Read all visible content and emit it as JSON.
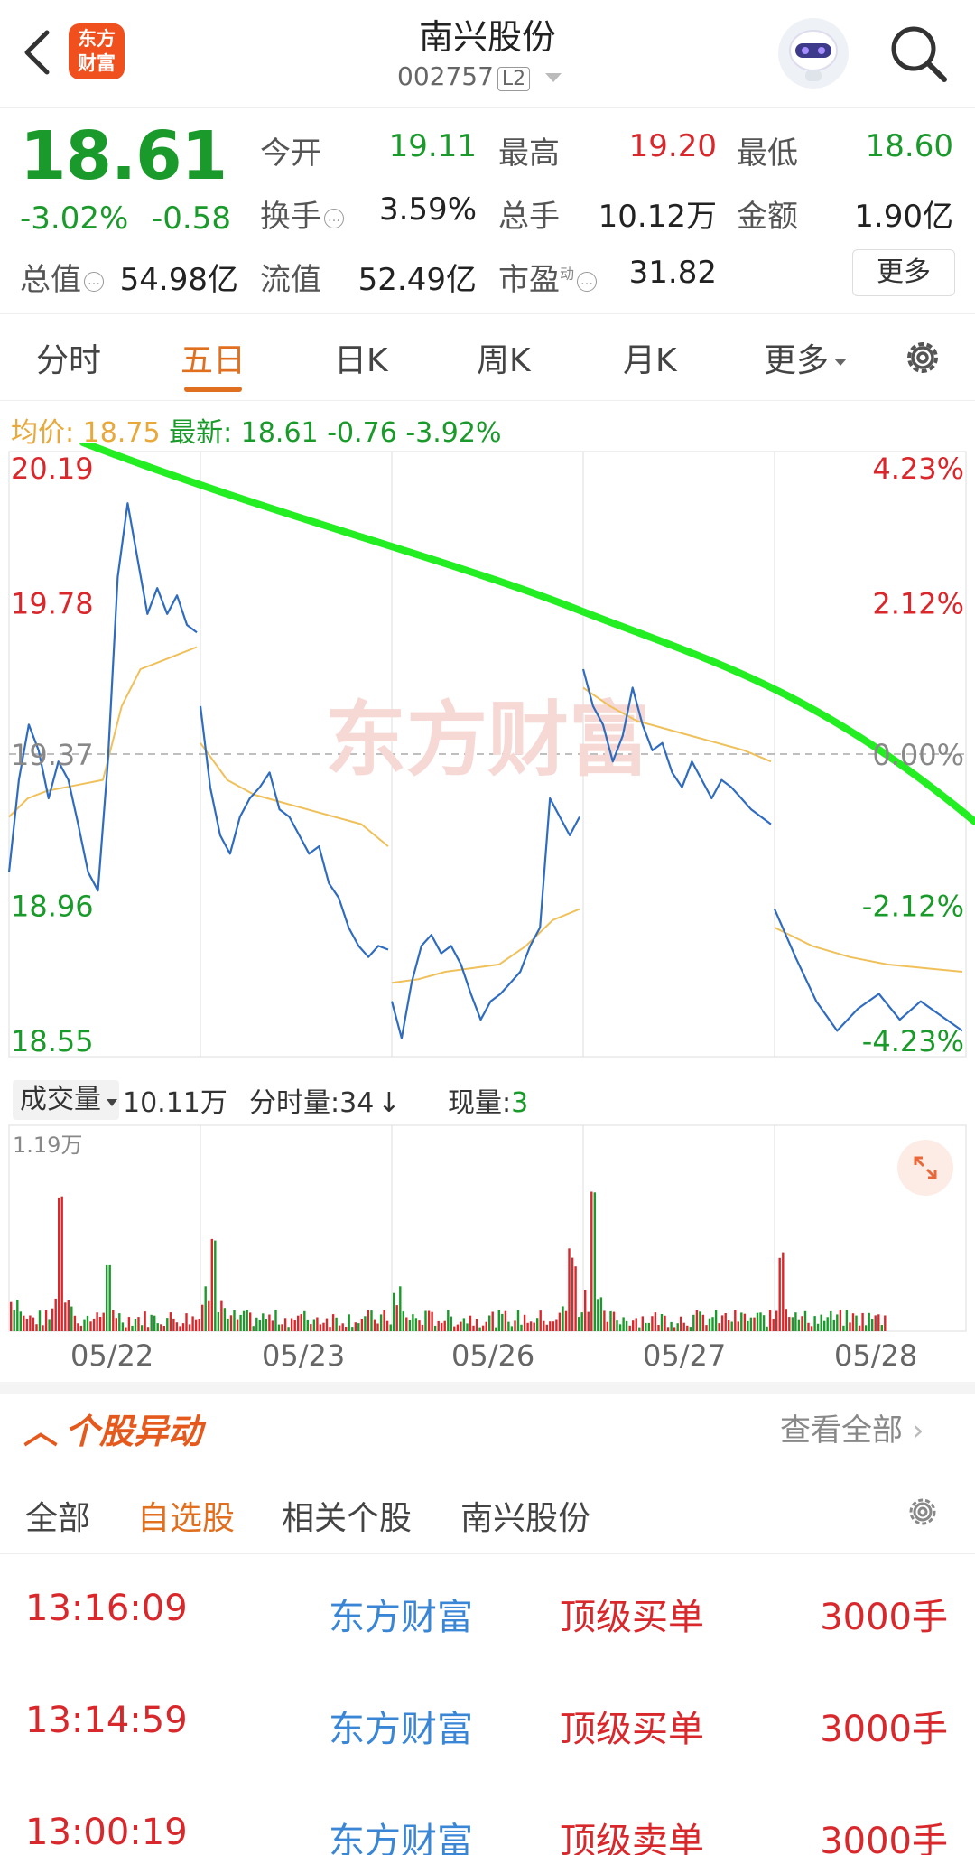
{
  "header": {
    "logo_text": "东方财富",
    "title": "南兴股份",
    "code": "002757",
    "level_badge": "L2"
  },
  "quote": {
    "price": "18.61",
    "change_pct": "-3.02%",
    "change_abs": "-0.58",
    "fields": [
      {
        "label": "今开",
        "value": "19.11",
        "color": "green"
      },
      {
        "label": "最高",
        "value": "19.20",
        "color": "red"
      },
      {
        "label": "最低",
        "value": "18.60",
        "color": "green"
      },
      {
        "label": "换手",
        "value": "3.59%",
        "color": "dark"
      },
      {
        "label": "总手",
        "value": "10.12万",
        "color": "dark"
      },
      {
        "label": "金额",
        "value": "1.90亿",
        "color": "dark"
      },
      {
        "label": "总值",
        "value": "54.98亿",
        "color": "dark"
      },
      {
        "label": "流值",
        "value": "52.49亿",
        "color": "dark"
      },
      {
        "label": "市盈",
        "value": "31.82",
        "color": "dark"
      }
    ],
    "pe_superscript": "动",
    "more_label": "更多"
  },
  "tabs": [
    "分时",
    "五日",
    "日K",
    "周K",
    "月K",
    "更多"
  ],
  "active_tab": "五日",
  "summary": {
    "avg_label": "均价:",
    "avg_value": "18.75",
    "latest_label": "最新:",
    "latest_value": "18.61",
    "latest_change": "-0.76",
    "latest_pct": "-3.92%"
  },
  "chart_data": {
    "type": "line",
    "y_left_ticks": [
      "20.19",
      "19.78",
      "19.37",
      "18.96",
      "18.55"
    ],
    "y_right_ticks": [
      "4.23%",
      "2.12%",
      "0.00%",
      "-2.12%",
      "-4.23%"
    ],
    "ylim": [
      18.55,
      20.19
    ],
    "reference_price": 19.37,
    "x_days": [
      "05/22",
      "05/23",
      "05/26",
      "05/27",
      "05/28"
    ],
    "price_series": [
      [
        19.05,
        19.3,
        19.45,
        19.38,
        19.25,
        19.35,
        19.3,
        19.18,
        19.05,
        19.0,
        19.35,
        19.85,
        20.05,
        19.9,
        19.75,
        19.82,
        19.75,
        19.8,
        19.72,
        19.7
      ],
      [
        19.5,
        19.28,
        19.15,
        19.1,
        19.2,
        19.25,
        19.28,
        19.32,
        19.22,
        19.2,
        19.15,
        19.1,
        19.12,
        19.02,
        18.98,
        18.9,
        18.85,
        18.82,
        18.85,
        18.84
      ],
      [
        18.7,
        18.6,
        18.75,
        18.85,
        18.88,
        18.83,
        18.85,
        18.8,
        18.72,
        18.65,
        18.7,
        18.72,
        18.75,
        18.78,
        18.85,
        18.9,
        19.25,
        19.2,
        19.15,
        19.2
      ],
      [
        19.6,
        19.5,
        19.45,
        19.35,
        19.42,
        19.55,
        19.45,
        19.38,
        19.4,
        19.32,
        19.28,
        19.35,
        19.3,
        19.25,
        19.3,
        19.28,
        19.25,
        19.22,
        19.2,
        19.18
      ],
      [
        18.95,
        18.82,
        18.7,
        18.62,
        18.68,
        18.72,
        18.65,
        18.7,
        18.66,
        18.62
      ]
    ],
    "avg_series": [
      [
        19.2,
        19.25,
        19.27,
        19.28,
        19.29,
        19.3,
        19.5,
        19.6,
        19.62,
        19.64,
        19.66
      ],
      [
        19.4,
        19.3,
        19.26,
        19.24,
        19.22,
        19.2,
        19.18,
        19.12
      ],
      [
        18.75,
        18.76,
        18.78,
        18.79,
        18.8,
        18.85,
        18.92,
        18.95
      ],
      [
        19.55,
        19.5,
        19.46,
        19.44,
        19.42,
        19.4,
        19.38,
        19.35
      ],
      [
        18.9,
        18.85,
        18.82,
        18.8,
        18.79,
        18.78
      ]
    ],
    "trend_line": {
      "color": "#22ee22"
    },
    "volume": {
      "max_label": "1.19万",
      "spikes": [
        [
          0,
          0.26,
          0.85
        ],
        [
          0,
          0.51,
          0.35
        ],
        [
          1,
          0.06,
          0.65
        ],
        [
          2,
          0.93,
          0.45
        ],
        [
          3,
          0.04,
          1.0
        ],
        [
          4,
          0.03,
          0.5
        ]
      ]
    }
  },
  "volume_header": {
    "selector": "成交量",
    "total": "10.11万",
    "per_minute": "分时量:34",
    "current_label": "现量:",
    "current_value": "3"
  },
  "section": {
    "title": "个股异动",
    "view_all": "查看全部"
  },
  "filters": [
    "全部",
    "自选股",
    "相关个股",
    "南兴股份"
  ],
  "active_filter": "自选股",
  "alerts": [
    {
      "time": "13:16:09",
      "name": "东方财富",
      "type": "顶级买单",
      "qty": "3000手"
    },
    {
      "time": "13:14:59",
      "name": "东方财富",
      "type": "顶级买单",
      "qty": "3000手"
    },
    {
      "time": "13:00:19",
      "name": "东方财富",
      "type": "顶级卖单",
      "qty": "3000手"
    }
  ]
}
